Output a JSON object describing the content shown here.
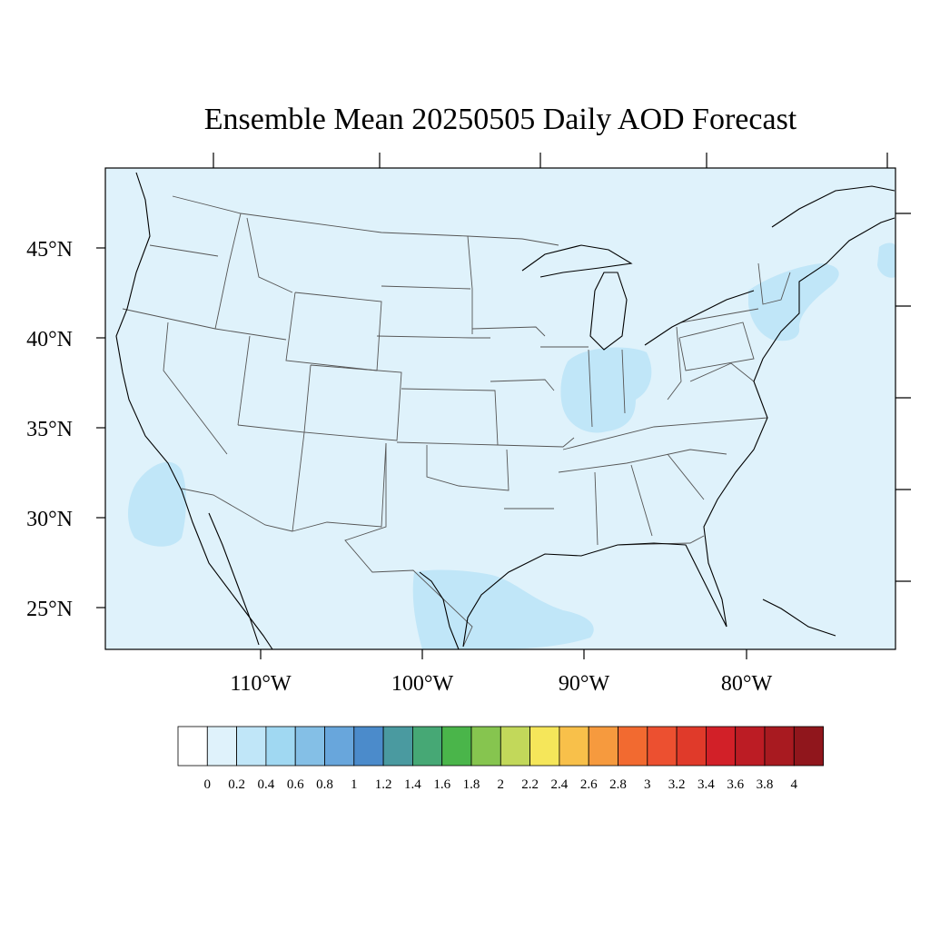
{
  "title": "Ensemble Mean 20250505 Daily AOD Forecast",
  "map": {
    "region": "contiguous-united-states",
    "ocean_land_fill": "#dff2fb",
    "elevated_fill": "#c0e6f8",
    "boundary_color": "#555555",
    "coast_color": "#000000",
    "elevated_areas": [
      "gulf-of-california",
      "indiana-illinois-ohio",
      "new-england-new-york",
      "gulf-of-mexico-texas-coast",
      "atlantic-off-maine"
    ]
  },
  "axes": {
    "lat_labels": [
      "45°N",
      "40°N",
      "35°N",
      "30°N",
      "25°N"
    ],
    "lon_labels": [
      "110°W",
      "100°W",
      "90°W",
      "80°W"
    ]
  },
  "colorbar": {
    "labels": [
      "0",
      "0.2",
      "0.4",
      "0.6",
      "0.8",
      "1",
      "1.2",
      "1.4",
      "1.6",
      "1.8",
      "2",
      "2.2",
      "2.4",
      "2.6",
      "2.8",
      "3",
      "3.2",
      "3.4",
      "3.6",
      "3.8",
      "4"
    ],
    "colors": [
      "#ffffff",
      "#dff2fb",
      "#c0e6f8",
      "#a0d8f2",
      "#84bfe6",
      "#68a6dc",
      "#4b8bcb",
      "#4a9aa0",
      "#46a875",
      "#4ab54a",
      "#86c54f",
      "#c2d85a",
      "#f5e65a",
      "#f8c04a",
      "#f69a3e",
      "#f26a30",
      "#ec5030",
      "#e03a2a",
      "#d22028",
      "#bc1c24",
      "#a81a20",
      "#90161c"
    ]
  }
}
